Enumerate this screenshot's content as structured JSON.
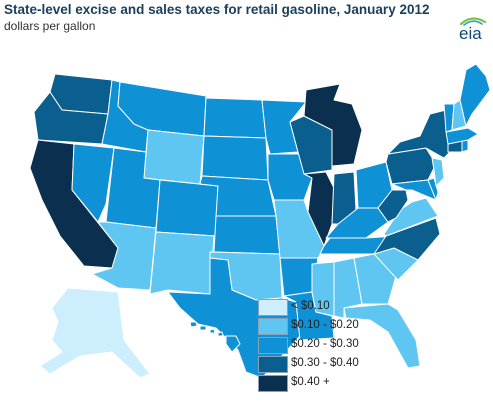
{
  "title": "State-level excise and sales taxes for retail gasoline, January 2012",
  "subtitle": "dollars per gallon",
  "logo": {
    "text": "eia",
    "icon": "eia-logo"
  },
  "colors": {
    "lt010": "#cdeefc",
    "r010_020": "#5ec6f1",
    "r020_030": "#0f91d6",
    "r030_040": "#0a5f8e",
    "r040_plus": "#0a2f4f",
    "border": "#ffffff"
  },
  "legend": [
    {
      "label": "< $0.10",
      "key": "lt010"
    },
    {
      "label": "$0.10 - $0.20",
      "key": "r010_020"
    },
    {
      "label": "$0.20 - $0.30",
      "key": "r020_030"
    },
    {
      "label": "$0.30 - $0.40",
      "key": "r030_040"
    },
    {
      "label": "$0.40 +",
      "key": "r040_plus"
    }
  ],
  "states": {
    "WA": "r030_040",
    "OR": "r030_040",
    "CA": "r040_plus",
    "NV": "r020_030",
    "ID": "r020_030",
    "MT": "r020_030",
    "WY": "r010_020",
    "UT": "r020_030",
    "AZ": "r010_020",
    "CO": "r020_030",
    "NM": "r010_020",
    "ND": "r020_030",
    "SD": "r020_030",
    "NE": "r020_030",
    "KS": "r020_030",
    "OK": "r010_020",
    "TX": "r020_030",
    "MN": "r020_030",
    "IA": "r020_030",
    "MO": "r010_020",
    "AR": "r020_030",
    "LA": "r020_030",
    "WI": "r030_040",
    "IL": "r040_plus",
    "MI": "r040_plus",
    "IN": "r030_040",
    "OH": "r020_030",
    "KY": "r020_030",
    "TN": "r020_030",
    "MS": "r010_020",
    "AL": "r010_020",
    "GA": "r010_020",
    "FL": "r010_020",
    "SC": "r010_020",
    "NC": "r030_040",
    "VA": "r010_020",
    "WV": "r030_040",
    "PA": "r030_040",
    "NY": "r030_040",
    "ME": "r020_030",
    "NH": "r010_020",
    "VT": "r020_030",
    "MA": "r020_030",
    "RI": "r020_030",
    "CT": "r030_040",
    "NJ": "r010_020",
    "DE": "r020_030",
    "MD": "r020_030",
    "AK": "lt010",
    "HI": "r020_030"
  }
}
